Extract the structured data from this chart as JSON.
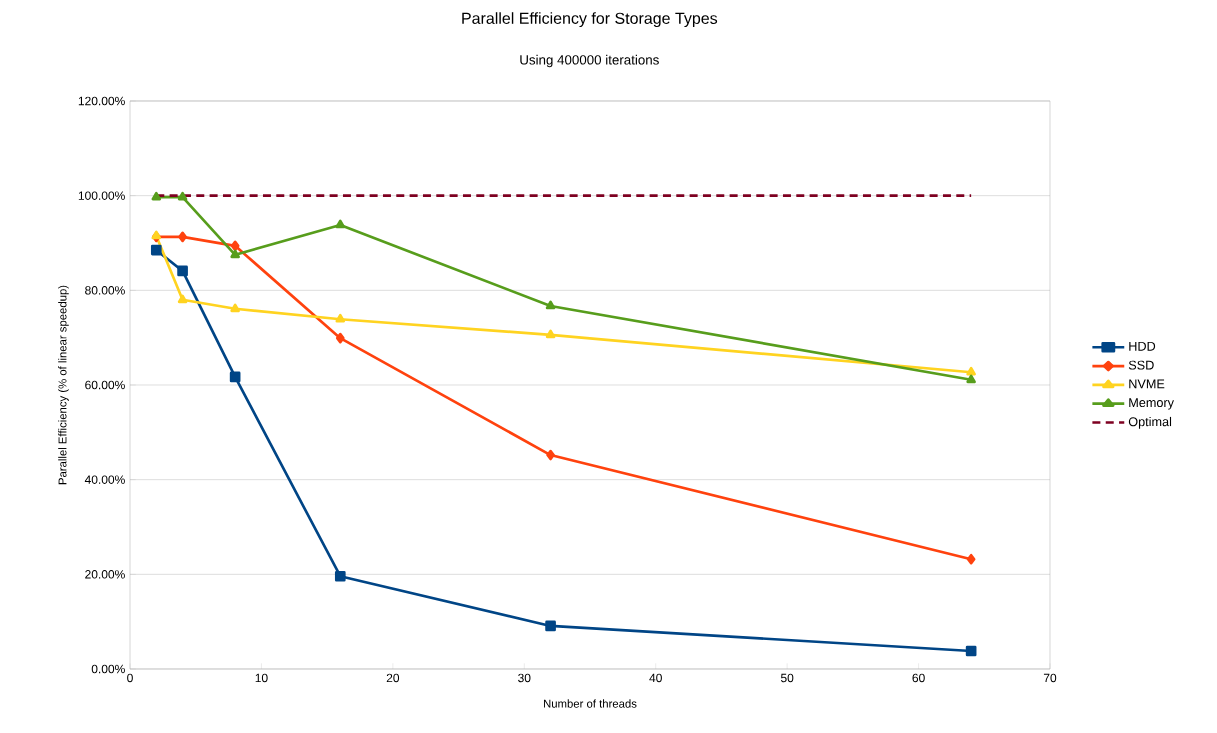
{
  "chart_data": {
    "type": "line",
    "title": "Parallel Efficiency for Storage Types",
    "subtitle": "Using 400000 iterations",
    "xlabel": "Number of threads",
    "ylabel": "Parallel Efficiency (% of linear speedup)",
    "x": [
      2,
      4,
      8,
      16,
      32,
      64
    ],
    "series": [
      {
        "name": "HDD",
        "color": "#004586",
        "marker": "square",
        "line_style": "solid",
        "values": [
          88.5,
          84.1,
          61.7,
          19.6,
          9.1,
          3.8
        ]
      },
      {
        "name": "SSD",
        "color": "#ff420e",
        "marker": "diamond",
        "line_style": "solid",
        "values": [
          91.3,
          91.3,
          89.4,
          69.9,
          45.2,
          23.2
        ]
      },
      {
        "name": "NVME",
        "color": "#ffd320",
        "marker": "triangle",
        "line_style": "solid",
        "values": [
          91.5,
          78.0,
          76.1,
          73.9,
          70.6,
          62.7
        ]
      },
      {
        "name": "Memory",
        "color": "#579d1c",
        "marker": "triangle",
        "line_style": "solid",
        "values": [
          99.7,
          99.7,
          87.5,
          93.8,
          76.7,
          61.1
        ]
      },
      {
        "name": "Optimal",
        "color": "#7e0021",
        "marker": "none",
        "line_style": "dashed",
        "values": [
          100,
          100,
          100,
          100,
          100,
          100
        ]
      }
    ],
    "xlim": [
      0,
      70
    ],
    "ylim": [
      0,
      120
    ],
    "xticks": [
      0,
      10,
      20,
      30,
      40,
      50,
      60,
      70
    ],
    "yticks": [
      {
        "value": 0,
        "label": "0.00%"
      },
      {
        "value": 20,
        "label": "20.00%"
      },
      {
        "value": 40,
        "label": "40.00%"
      },
      {
        "value": 60,
        "label": "60.00%"
      },
      {
        "value": 80,
        "label": "80.00%"
      },
      {
        "value": 100,
        "label": "100.00%"
      },
      {
        "value": 120,
        "label": "120.00%"
      }
    ],
    "grid": "y",
    "legend": "right"
  }
}
